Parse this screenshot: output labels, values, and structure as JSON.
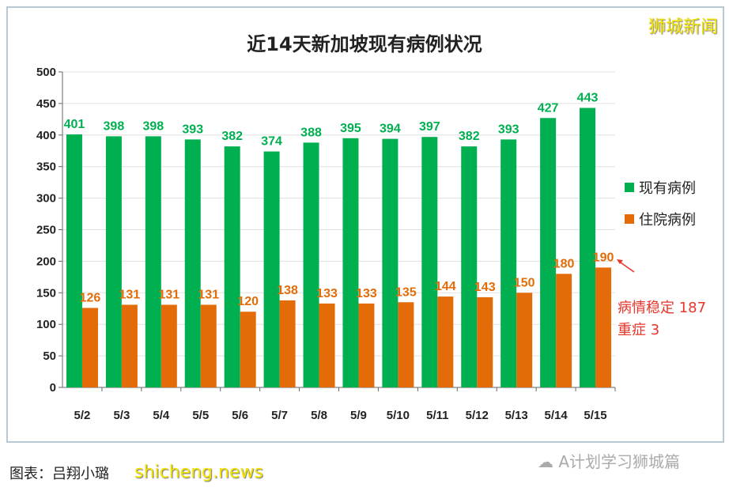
{
  "chart_data": {
    "type": "bar",
    "title": "近14天新加坡现有病例状况",
    "categories": [
      "5/2",
      "5/3",
      "5/4",
      "5/5",
      "5/6",
      "5/7",
      "5/8",
      "5/9",
      "5/10",
      "5/11",
      "5/12",
      "5/13",
      "5/14",
      "5/15"
    ],
    "series": [
      {
        "name": "现有病例",
        "color": "#00b050",
        "values": [
          401,
          398,
          398,
          393,
          382,
          374,
          388,
          395,
          394,
          397,
          382,
          393,
          427,
          443
        ]
      },
      {
        "name": "住院病例",
        "color": "#e36c09",
        "values": [
          126,
          131,
          131,
          131,
          120,
          138,
          133,
          133,
          135,
          144,
          143,
          150,
          180,
          190
        ]
      }
    ],
    "ylim": [
      0,
      500
    ],
    "yticks": [
      0,
      50,
      100,
      150,
      200,
      250,
      300,
      350,
      400,
      450,
      500
    ],
    "grid": true,
    "legend": "right",
    "annotation": {
      "line1": "病情稳定 187",
      "line2": "重症  3",
      "color": "#e8352b"
    }
  },
  "watermark": "狮城新闻",
  "footer": {
    "credit": "图表：吕翔小璐",
    "watermark": "shicheng.news",
    "wechat": "A计划学习狮城篇"
  }
}
